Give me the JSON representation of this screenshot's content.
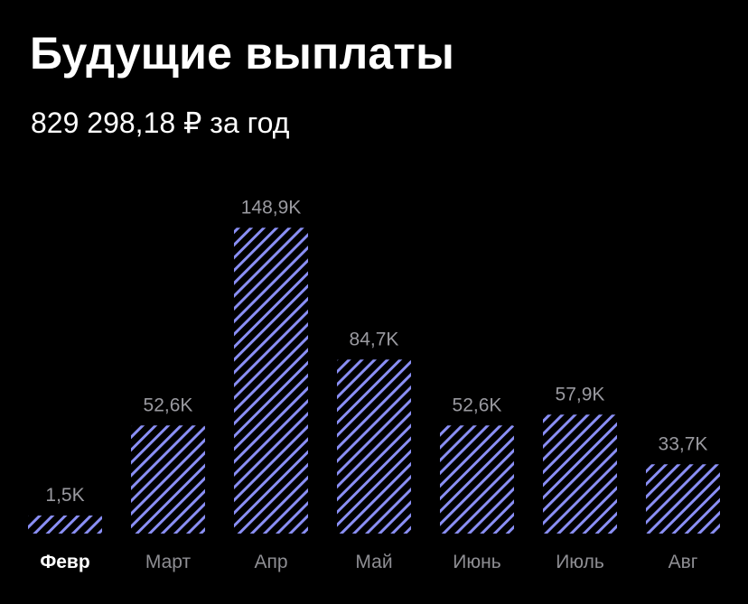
{
  "header": {
    "title": "Будущие выплаты",
    "subtitle": "829 298,18 ₽ за год"
  },
  "colors": {
    "background": "#000000",
    "bar_stripe": "#8a8ff5",
    "value_label": "#9a9aa0",
    "month_label": "#8e8e93",
    "selected_month_label": "#ffffff"
  },
  "chart_data": {
    "type": "bar",
    "categories": [
      "Февр",
      "Март",
      "Апр",
      "Май",
      "Июнь",
      "Июль",
      "Авг"
    ],
    "values": [
      1.5,
      52.6,
      148.9,
      84.7,
      52.6,
      57.9,
      33.7
    ],
    "value_labels": [
      "1,5K",
      "52,6K",
      "148,9K",
      "84,7K",
      "52,6K",
      "57,9K",
      "33,7K"
    ],
    "selected_category": "Февр",
    "bar_fill": "diagonal-hatch"
  }
}
